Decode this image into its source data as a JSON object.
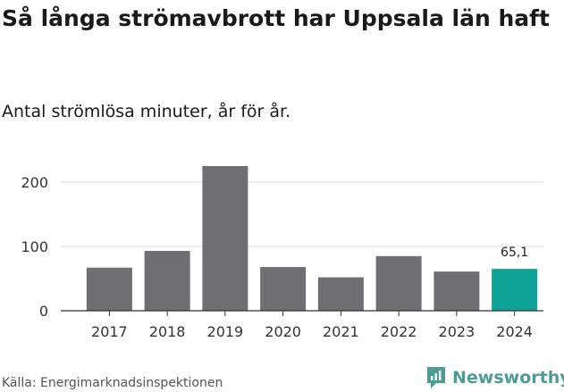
{
  "title": "Så långa strömavbrott har Uppsala län haft",
  "subtitle": "Antal strömlösa minuter, år för år.",
  "source": "Källa: Energimarknadsinspektionen",
  "brand": {
    "name": "Newsworthy",
    "icon": "newsworthy-logo-icon"
  },
  "colors": {
    "bar": "#6f6e73",
    "highlight": "#0fa297",
    "grid": "#dddddd",
    "axis": "#333333",
    "brand": "#4d9c94"
  },
  "chart_data": {
    "type": "bar",
    "title": "Så långa strömavbrott har Uppsala län haft",
    "subtitle": "Antal strömlösa minuter, år för år.",
    "xlabel": "",
    "ylabel": "",
    "categories": [
      "2017",
      "2018",
      "2019",
      "2020",
      "2021",
      "2022",
      "2023",
      "2024"
    ],
    "values": [
      67,
      93,
      225,
      68,
      52,
      85,
      61,
      65.1
    ],
    "highlight_index": 7,
    "highlight_label": "65,1",
    "yticks": [
      0,
      100,
      200
    ],
    "ylim": [
      0,
      230
    ],
    "grid": true
  }
}
